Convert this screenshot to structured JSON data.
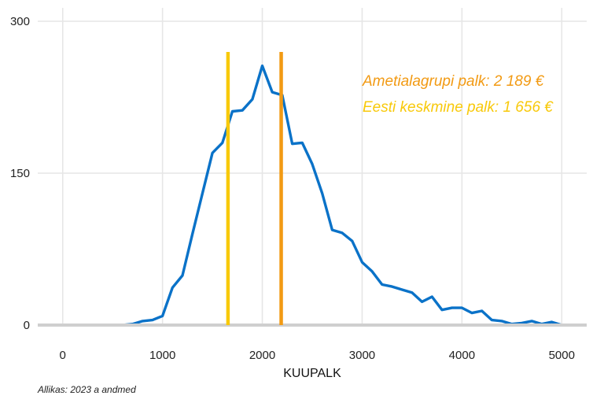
{
  "chart_data": {
    "type": "line",
    "xlabel": "KUUPALK",
    "ylabel": "",
    "xlim": [
      -250,
      5250
    ],
    "ylim": [
      0,
      300
    ],
    "xticks": [
      0,
      1000,
      2000,
      3000,
      4000,
      5000
    ],
    "yticks": [
      0,
      150,
      300
    ],
    "grid": true,
    "series": [
      {
        "color": "#0a72c8",
        "x": [
          0,
          100,
          200,
          300,
          400,
          500,
          600,
          700,
          800,
          900,
          1000,
          1100,
          1200,
          1300,
          1400,
          1500,
          1600,
          1700,
          1800,
          1900,
          2000,
          2100,
          2200,
          2300,
          2400,
          2500,
          2600,
          2700,
          2800,
          2900,
          3000,
          3100,
          3200,
          3300,
          3400,
          3500,
          3600,
          3700,
          3800,
          3900,
          4000,
          4100,
          4200,
          4300,
          4400,
          4500,
          4600,
          4700,
          4800,
          4900,
          5000
        ],
        "y": [
          0,
          0,
          0,
          0,
          0,
          0,
          0,
          1,
          4,
          5,
          9,
          37,
          49,
          90,
          130,
          170,
          180,
          211,
          212,
          223,
          256,
          230,
          227,
          179,
          180,
          159,
          130,
          94,
          91,
          83,
          62,
          53,
          40,
          38,
          35,
          32,
          23,
          28,
          15,
          17,
          17,
          12,
          14,
          5,
          4,
          1,
          2,
          4,
          1,
          3,
          0
        ]
      }
    ],
    "vlines": [
      {
        "x": 1656,
        "color": "#f8c90a",
        "label": "Eesti keskmine palk: 1 656 €"
      },
      {
        "x": 2189,
        "color": "#f29a13",
        "label": "Ametialagrupi palk: 2 189 €"
      }
    ]
  },
  "source": "Allikas: 2023 a andmed"
}
